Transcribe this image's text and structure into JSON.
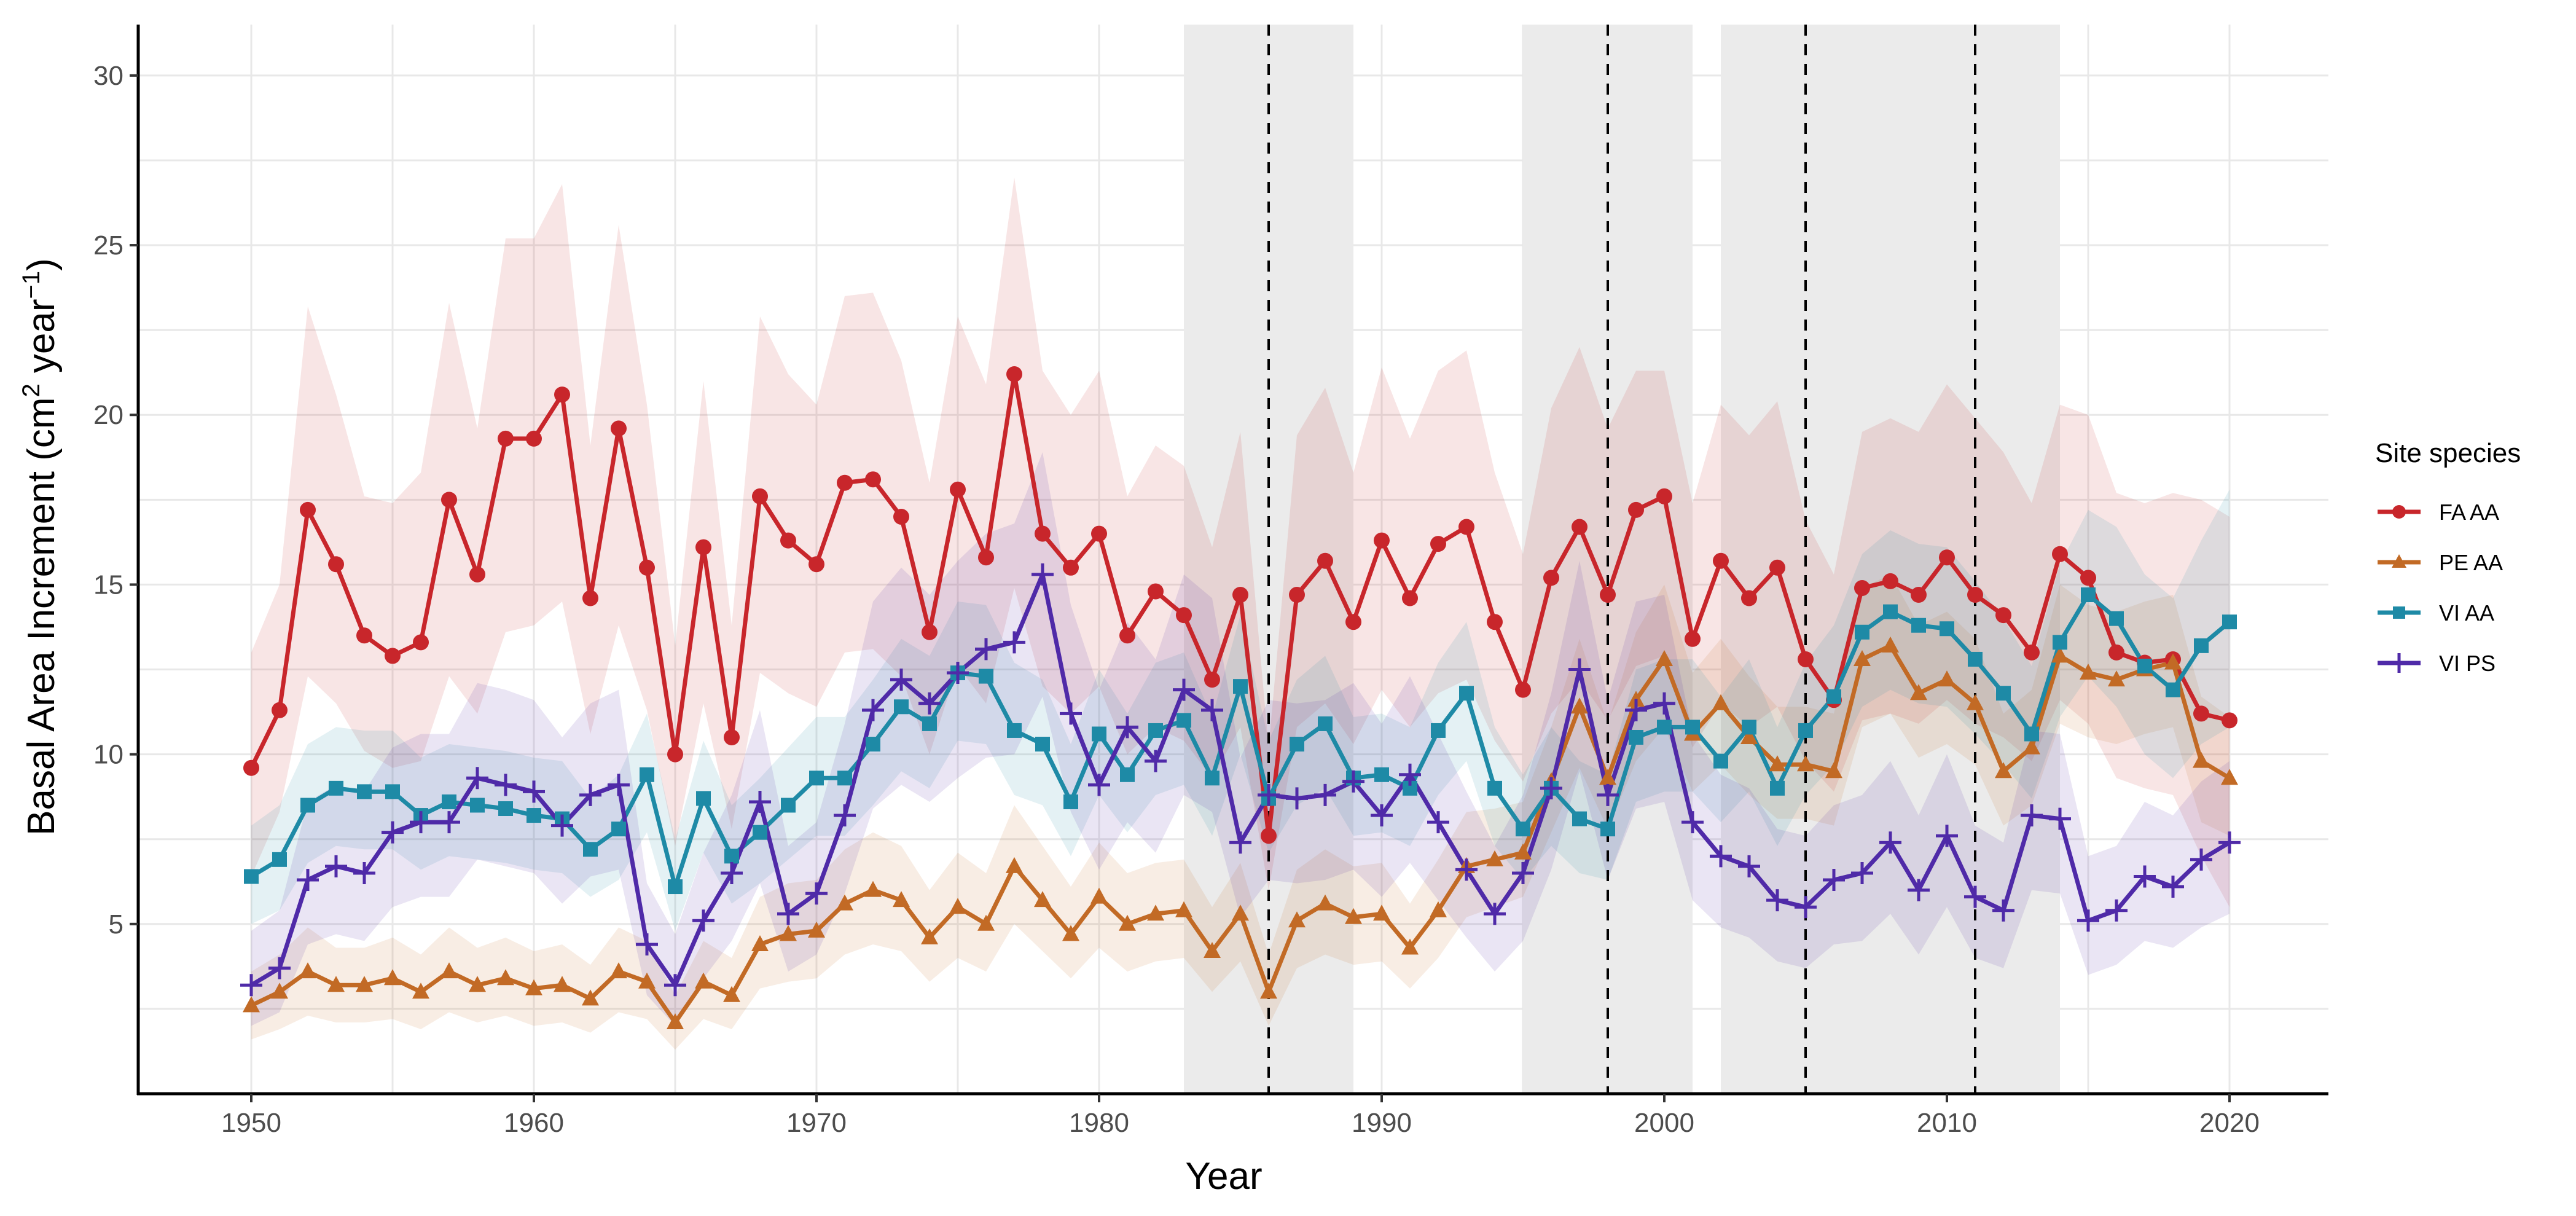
{
  "chart_data": {
    "type": "line",
    "title": "",
    "xlabel": "Year",
    "ylabel_main": "Basal Area Increment (cm",
    "ylabel_sup1": "2",
    "ylabel_mid": " year",
    "ylabel_sup2": "−1",
    "ylabel_end": ")",
    "xlim": [
      1946,
      2023.5
    ],
    "ylim": [
      0,
      31.5
    ],
    "x_ticks": [
      1950,
      1960,
      1970,
      1980,
      1990,
      2000,
      2010,
      2020
    ],
    "y_ticks": [
      5,
      10,
      15,
      20,
      25,
      30
    ],
    "grid": true,
    "legend": {
      "title": "Site species",
      "position": "right"
    },
    "shaded_periods": [
      [
        1983,
        1989
      ],
      [
        1995,
        2001
      ],
      [
        2002,
        2014
      ]
    ],
    "event_years": [
      1986,
      1998,
      2005,
      2011
    ],
    "x": [
      1950,
      1951,
      1952,
      1953,
      1954,
      1955,
      1956,
      1957,
      1958,
      1959,
      1960,
      1961,
      1962,
      1963,
      1964,
      1965,
      1966,
      1967,
      1968,
      1969,
      1970,
      1971,
      1972,
      1973,
      1974,
      1975,
      1976,
      1977,
      1978,
      1979,
      1980,
      1981,
      1982,
      1983,
      1984,
      1985,
      1986,
      1987,
      1988,
      1989,
      1990,
      1991,
      1992,
      1993,
      1994,
      1995,
      1996,
      1997,
      1998,
      1999,
      2000,
      2001,
      2002,
      2003,
      2004,
      2005,
      2006,
      2007,
      2008,
      2009,
      2010,
      2011,
      2012,
      2013,
      2014,
      2015,
      2016,
      2017,
      2018,
      2019,
      2020
    ],
    "series": [
      {
        "name": "FA AA",
        "color": "#c8262b",
        "marker": "circle",
        "values": [
          9.6,
          11.3,
          17.2,
          15.6,
          13.5,
          12.9,
          13.3,
          17.5,
          15.3,
          19.3,
          19.3,
          20.6,
          14.6,
          19.6,
          15.5,
          10.0,
          16.1,
          10.5,
          17.6,
          16.3,
          15.6,
          18.0,
          18.1,
          17.0,
          13.6,
          17.8,
          15.8,
          21.2,
          16.5,
          15.5,
          16.5,
          13.5,
          14.8,
          14.1,
          12.2,
          14.7,
          7.6,
          14.7,
          15.7,
          13.9,
          16.3,
          14.6,
          16.2,
          16.7,
          13.9,
          11.9,
          15.2,
          16.7,
          14.7,
          17.2,
          17.6,
          13.4,
          15.7,
          14.6,
          15.5,
          12.8,
          11.6,
          14.9,
          15.1,
          14.7,
          15.8,
          14.7,
          14.1,
          13.0,
          15.9,
          15.2,
          13.0,
          12.7,
          12.8,
          11.2,
          11.0
        ],
        "lower": [
          6.4,
          8.3,
          12.3,
          11.5,
          10.1,
          9.6,
          9.8,
          12.3,
          11.2,
          13.6,
          13.8,
          14.5,
          10.6,
          13.8,
          11.3,
          7.3,
          11.5,
          7.8,
          12.4,
          11.8,
          11.4,
          13.0,
          13.1,
          12.3,
          10.0,
          12.6,
          11.5,
          14.9,
          12.0,
          11.2,
          12.0,
          10.0,
          10.8,
          10.4,
          9.3,
          10.8,
          6.0,
          10.8,
          11.5,
          10.3,
          11.9,
          10.8,
          11.8,
          12.2,
          10.4,
          9.2,
          11.2,
          12.2,
          11.0,
          12.6,
          12.9,
          10.2,
          11.5,
          10.8,
          11.4,
          9.8,
          8.9,
          11.0,
          11.2,
          10.9,
          11.6,
          10.9,
          10.5,
          9.8,
          11.6,
          10.9,
          9.3,
          9.0,
          8.8,
          7.0,
          5.5
        ],
        "upper": [
          13.0,
          15.0,
          23.2,
          20.6,
          17.6,
          17.4,
          18.3,
          23.3,
          19.6,
          25.2,
          25.2,
          26.8,
          19.1,
          25.6,
          20.3,
          13.2,
          21.0,
          13.8,
          22.9,
          21.2,
          20.3,
          23.5,
          23.6,
          21.6,
          18.0,
          22.9,
          20.9,
          27.0,
          21.3,
          20.0,
          21.3,
          17.6,
          19.1,
          18.5,
          16.1,
          19.5,
          10.2,
          19.4,
          20.8,
          18.3,
          21.4,
          19.3,
          21.3,
          21.9,
          18.3,
          15.9,
          20.2,
          22.0,
          19.6,
          21.3,
          21.3,
          17.4,
          20.3,
          19.4,
          20.4,
          16.9,
          15.3,
          19.5,
          19.9,
          19.5,
          20.9,
          19.9,
          18.9,
          17.4,
          20.3,
          20.0,
          17.7,
          17.4,
          17.7,
          17.5,
          17.0
        ]
      },
      {
        "name": "PE AA",
        "color": "#c26a25",
        "marker": "triangle",
        "values": [
          2.6,
          3.0,
          3.6,
          3.2,
          3.2,
          3.4,
          3.0,
          3.6,
          3.2,
          3.4,
          3.1,
          3.2,
          2.8,
          3.6,
          3.3,
          2.1,
          3.3,
          2.9,
          4.4,
          4.7,
          4.8,
          5.6,
          6.0,
          5.7,
          4.6,
          5.5,
          5.0,
          6.7,
          5.7,
          4.7,
          5.8,
          5.0,
          5.3,
          5.4,
          4.2,
          5.3,
          3.0,
          5.1,
          5.6,
          5.2,
          5.3,
          4.3,
          5.4,
          6.7,
          6.9,
          7.1,
          9.2,
          11.4,
          9.3,
          11.6,
          12.8,
          10.6,
          11.5,
          10.5,
          9.7,
          9.7,
          9.5,
          12.8,
          13.2,
          11.8,
          12.2,
          11.5,
          9.5,
          10.2,
          12.9,
          12.4,
          12.2,
          12.5,
          12.7,
          9.8,
          9.3
        ],
        "lower": [
          1.6,
          1.9,
          2.3,
          2.1,
          2.1,
          2.2,
          1.9,
          2.4,
          2.1,
          2.3,
          2.0,
          2.1,
          1.8,
          2.4,
          2.2,
          1.3,
          2.2,
          1.9,
          3.1,
          3.3,
          3.4,
          4.1,
          4.4,
          4.2,
          3.3,
          4.0,
          3.6,
          5.0,
          4.2,
          3.4,
          4.3,
          3.6,
          3.9,
          4.0,
          3.0,
          3.9,
          2.0,
          3.7,
          4.1,
          3.8,
          3.9,
          3.1,
          4.0,
          5.2,
          5.5,
          5.8,
          7.7,
          9.6,
          7.8,
          9.8,
          10.8,
          8.9,
          9.7,
          8.8,
          8.1,
          8.1,
          7.9,
          10.8,
          11.2,
          9.9,
          10.3,
          9.7,
          7.9,
          8.5,
          10.9,
          10.5,
          10.3,
          10.6,
          10.8,
          8.0,
          7.6
        ],
        "upper": [
          3.6,
          4.1,
          4.9,
          4.3,
          4.3,
          4.6,
          4.1,
          4.9,
          4.3,
          4.6,
          4.2,
          4.4,
          3.8,
          4.9,
          4.5,
          2.9,
          4.5,
          4.0,
          5.8,
          6.2,
          6.3,
          7.2,
          7.7,
          7.3,
          6.0,
          7.1,
          6.5,
          8.5,
          7.3,
          6.1,
          7.4,
          6.5,
          6.8,
          6.9,
          5.5,
          6.8,
          4.1,
          6.6,
          7.2,
          6.7,
          6.8,
          5.6,
          6.9,
          8.3,
          8.4,
          8.6,
          10.8,
          13.4,
          10.9,
          13.6,
          15.0,
          12.4,
          13.4,
          12.3,
          11.4,
          11.4,
          11.2,
          14.9,
          15.3,
          13.8,
          14.2,
          13.4,
          11.2,
          11.9,
          15.0,
          14.4,
          14.2,
          14.5,
          14.7,
          11.7,
          11.1
        ]
      },
      {
        "name": "VI AA",
        "color": "#1e8aa6",
        "marker": "square",
        "values": [
          6.4,
          6.9,
          8.5,
          9.0,
          8.9,
          8.9,
          8.2,
          8.6,
          8.5,
          8.4,
          8.2,
          8.1,
          7.2,
          7.8,
          9.4,
          6.1,
          8.7,
          7.0,
          7.7,
          8.5,
          9.3,
          9.3,
          10.3,
          11.4,
          10.9,
          12.4,
          12.3,
          10.7,
          10.3,
          8.6,
          10.6,
          9.4,
          10.7,
          11.0,
          9.3,
          12.0,
          8.7,
          10.3,
          10.9,
          9.3,
          9.4,
          9.0,
          10.7,
          11.8,
          9.0,
          7.8,
          9.0,
          8.1,
          7.8,
          10.5,
          10.8,
          10.8,
          9.8,
          10.8,
          9.0,
          10.7,
          11.7,
          13.6,
          14.2,
          13.8,
          13.7,
          12.8,
          11.8,
          10.6,
          13.3,
          14.7,
          14.0,
          12.6,
          11.9,
          13.2,
          13.9
        ],
        "lower": [
          5.0,
          5.4,
          6.8,
          7.3,
          7.2,
          7.2,
          6.6,
          7.0,
          6.9,
          6.8,
          6.6,
          6.5,
          5.8,
          6.3,
          7.7,
          4.8,
          7.1,
          5.6,
          6.2,
          6.9,
          7.6,
          7.6,
          8.5,
          9.5,
          9.0,
          10.4,
          10.3,
          8.8,
          8.5,
          7.0,
          8.8,
          7.7,
          8.8,
          9.1,
          7.6,
          10.0,
          7.1,
          8.5,
          9.0,
          7.6,
          7.7,
          7.3,
          8.8,
          9.8,
          7.3,
          6.3,
          7.3,
          6.5,
          6.3,
          8.6,
          8.9,
          8.9,
          8.0,
          8.9,
          7.3,
          8.8,
          9.7,
          11.4,
          11.9,
          11.5,
          11.4,
          10.6,
          9.7,
          8.7,
          11.1,
          12.3,
          11.4,
          10.0,
          9.3,
          10.3,
          10.8
        ],
        "upper": [
          7.9,
          8.5,
          10.3,
          10.8,
          10.7,
          10.7,
          9.9,
          10.3,
          10.2,
          10.1,
          9.9,
          9.8,
          8.7,
          9.4,
          11.2,
          7.5,
          10.4,
          8.5,
          9.3,
          10.2,
          11.1,
          11.1,
          12.2,
          13.4,
          12.9,
          14.5,
          14.4,
          12.7,
          12.2,
          10.3,
          12.5,
          11.2,
          12.7,
          13.0,
          11.1,
          14.1,
          10.4,
          12.2,
          12.9,
          11.1,
          11.2,
          10.8,
          12.7,
          13.9,
          10.8,
          9.4,
          10.8,
          9.8,
          9.4,
          12.5,
          12.8,
          12.8,
          11.7,
          12.8,
          10.8,
          12.7,
          13.8,
          15.9,
          16.6,
          16.2,
          16.1,
          15.1,
          14.0,
          12.6,
          15.6,
          17.2,
          16.7,
          15.3,
          14.6,
          16.3,
          17.8
        ]
      },
      {
        "name": "VI PS",
        "color": "#4f2aa8",
        "marker": "cross",
        "values": [
          3.2,
          3.7,
          6.3,
          6.7,
          6.5,
          7.7,
          8.0,
          8.0,
          9.3,
          9.1,
          8.9,
          7.9,
          8.8,
          9.1,
          4.4,
          3.2,
          5.1,
          6.5,
          8.6,
          5.3,
          5.9,
          8.2,
          11.3,
          12.2,
          11.5,
          12.4,
          13.1,
          13.3,
          15.3,
          11.2,
          9.1,
          10.8,
          9.8,
          11.9,
          11.3,
          7.4,
          8.8,
          8.7,
          8.8,
          9.2,
          8.2,
          9.4,
          8.0,
          6.6,
          5.3,
          6.5,
          9.0,
          12.5,
          8.8,
          11.3,
          11.5,
          8.0,
          7.0,
          6.7,
          5.7,
          5.5,
          6.3,
          6.5,
          7.4,
          6.0,
          7.6,
          5.8,
          5.4,
          8.2,
          8.1,
          5.1,
          5.4,
          6.4,
          6.1,
          6.9,
          7.4
        ],
        "lower": [
          2.0,
          2.4,
          4.4,
          4.7,
          4.5,
          5.5,
          5.8,
          5.8,
          6.9,
          6.7,
          6.5,
          5.6,
          6.4,
          6.6,
          2.9,
          2.0,
          3.4,
          4.5,
          6.2,
          3.6,
          4.1,
          5.9,
          8.4,
          9.1,
          8.6,
          9.3,
          9.9,
          10.0,
          11.7,
          8.3,
          6.6,
          8.0,
          7.1,
          8.8,
          8.3,
          5.2,
          6.3,
          6.2,
          6.3,
          6.6,
          5.8,
          6.8,
          5.7,
          4.6,
          3.6,
          4.5,
          6.6,
          9.5,
          6.3,
          8.4,
          8.6,
          5.7,
          4.9,
          4.6,
          3.9,
          3.7,
          4.4,
          4.5,
          5.3,
          4.1,
          5.5,
          4.0,
          3.7,
          6.0,
          5.9,
          3.5,
          3.8,
          4.5,
          4.3,
          4.9,
          5.3
        ],
        "upper": [
          4.8,
          5.4,
          8.6,
          9.1,
          8.9,
          10.2,
          10.6,
          10.6,
          12.1,
          11.9,
          11.6,
          10.5,
          11.5,
          11.9,
          6.2,
          4.7,
          7.1,
          8.8,
          11.3,
          7.3,
          8.0,
          10.9,
          14.5,
          15.5,
          14.7,
          15.7,
          16.5,
          16.8,
          18.9,
          14.4,
          11.9,
          13.9,
          12.8,
          15.3,
          14.6,
          9.9,
          11.6,
          11.5,
          11.6,
          12.1,
          10.9,
          12.3,
          10.6,
          8.9,
          7.3,
          8.8,
          11.8,
          15.7,
          11.6,
          14.5,
          14.7,
          10.6,
          9.4,
          9.0,
          7.8,
          7.6,
          8.5,
          8.8,
          9.8,
          8.2,
          10.0,
          7.9,
          7.4,
          10.7,
          10.6,
          7.0,
          7.3,
          8.6,
          8.2,
          9.2,
          9.8
        ]
      }
    ]
  }
}
